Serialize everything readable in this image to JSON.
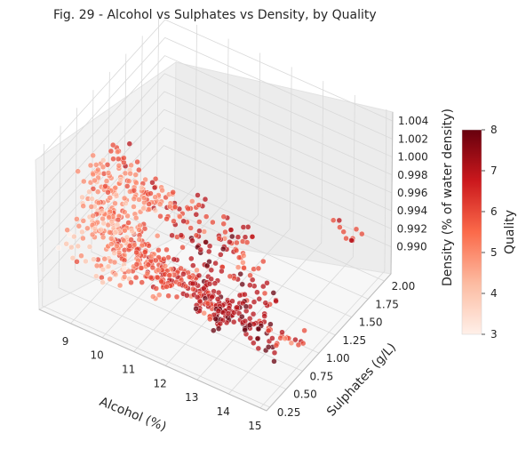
{
  "chart_data": {
    "type": "scatter",
    "projection": "3d",
    "title": "Fig. 29 - Alcohol vs Sulphates vs Density, by Quality",
    "xlabel": "Alcohol (%)",
    "ylabel": "Sulphates (g/L)",
    "zlabel": "Density (% of water density)",
    "x_ticks": [
      "9",
      "10",
      "11",
      "12",
      "13",
      "14",
      "15"
    ],
    "y_ticks": [
      "0.25",
      "0.50",
      "0.75",
      "1.00",
      "1.25",
      "1.50",
      "1.75",
      "2.00"
    ],
    "z_ticks": [
      "0.990",
      "0.992",
      "0.994",
      "0.996",
      "0.998",
      "1.000",
      "1.002",
      "1.004"
    ],
    "xlim": [
      8.0,
      15.2
    ],
    "ylim": [
      0.2,
      2.1
    ],
    "zlim": [
      0.987,
      1.005
    ],
    "grid": true,
    "colorbar": {
      "label": "Quality",
      "ticks": [
        "3",
        "4",
        "5",
        "6",
        "7",
        "8"
      ],
      "range": [
        3,
        8
      ],
      "colormap": "Reds",
      "colors": [
        "#fff0e9",
        "#fcbba1",
        "#fb6a4a",
        "#cb181d",
        "#67000d"
      ]
    },
    "points_note": "approximately 1500 wine samples; dense cluster at alcohol 9-11.5%, sulphates 0.3-0.8 g/L, density 0.993-0.998",
    "points": [
      [
        9.2,
        0.45,
        0.9965,
        5
      ],
      [
        9.4,
        0.52,
        0.9972,
        5
      ],
      [
        9.5,
        0.6,
        0.9968,
        5
      ],
      [
        9.6,
        0.48,
        0.9975,
        5
      ],
      [
        9.8,
        0.55,
        0.996,
        6
      ],
      [
        9.9,
        0.62,
        0.997,
        5
      ],
      [
        10.0,
        0.5,
        0.9955,
        6
      ],
      [
        10.1,
        0.58,
        0.9962,
        5
      ],
      [
        10.2,
        0.66,
        0.995,
        6
      ],
      [
        10.3,
        0.47,
        0.9958,
        5
      ],
      [
        9.3,
        0.38,
        0.998,
        5
      ],
      [
        9.5,
        0.42,
        0.9985,
        4
      ],
      [
        9.7,
        0.7,
        0.9978,
        5
      ],
      [
        10.4,
        0.52,
        0.9948,
        6
      ],
      [
        10.5,
        0.6,
        0.994,
        6
      ],
      [
        10.6,
        0.44,
        0.9952,
        6
      ],
      [
        10.8,
        0.56,
        0.9935,
        6
      ],
      [
        11.0,
        0.62,
        0.993,
        6
      ],
      [
        11.2,
        0.7,
        0.9925,
        7
      ],
      [
        11.4,
        0.58,
        0.992,
        6
      ],
      [
        11.6,
        0.66,
        0.9918,
        7
      ],
      [
        11.8,
        0.74,
        0.9915,
        7
      ],
      [
        12.0,
        0.8,
        0.991,
        7
      ],
      [
        12.2,
        0.62,
        0.9912,
        6
      ],
      [
        12.4,
        0.7,
        0.9905,
        7
      ],
      [
        12.6,
        0.78,
        0.99,
        7
      ],
      [
        12.8,
        0.72,
        0.9902,
        7
      ],
      [
        13.0,
        0.68,
        0.9898,
        8
      ],
      [
        13.2,
        0.76,
        0.9895,
        7
      ],
      [
        13.5,
        0.82,
        0.989,
        7
      ],
      [
        9.1,
        0.55,
        0.999,
        5
      ],
      [
        9.0,
        0.6,
        1.0,
        5
      ],
      [
        9.4,
        0.75,
        0.9995,
        5
      ],
      [
        9.8,
        0.9,
        0.9982,
        6
      ],
      [
        10.2,
        0.95,
        0.997,
        5
      ],
      [
        10.8,
        1.1,
        0.9955,
        6
      ],
      [
        11.4,
        1.2,
        0.994,
        6
      ],
      [
        12.0,
        1.3,
        0.9925,
        7
      ],
      [
        11.0,
        1.0,
        0.995,
        6
      ],
      [
        10.0,
        0.35,
        0.9965,
        5
      ],
      [
        10.4,
        0.4,
        0.9958,
        6
      ],
      [
        9.6,
        0.33,
        0.9972,
        5
      ],
      [
        10.9,
        0.48,
        0.9945,
        6
      ],
      [
        11.3,
        0.52,
        0.9935,
        6
      ],
      [
        11.7,
        0.55,
        0.9928,
        6
      ],
      [
        12.1,
        0.58,
        0.992,
        7
      ],
      [
        12.5,
        0.6,
        0.9915,
        6
      ],
      [
        12.9,
        0.64,
        0.9908,
        7
      ],
      [
        13.4,
        0.7,
        0.99,
        7
      ],
      [
        13.8,
        0.75,
        0.9895,
        8
      ],
      [
        14.0,
        0.8,
        0.9892,
        7
      ],
      [
        14.2,
        0.72,
        0.989,
        7
      ],
      [
        14.5,
        0.85,
        0.9888,
        6
      ],
      [
        9.2,
        0.65,
        0.9988,
        5
      ],
      [
        9.6,
        0.8,
        0.9978,
        5
      ],
      [
        10.1,
        0.85,
        0.9968,
        6
      ],
      [
        10.6,
        0.9,
        0.9958,
        6
      ],
      [
        11.1,
        0.88,
        0.9945,
        6
      ],
      [
        11.6,
        0.92,
        0.9935,
        7
      ],
      [
        12.2,
        0.96,
        0.9922,
        7
      ],
      [
        9.8,
        0.45,
        0.9962,
        4
      ],
      [
        10.3,
        0.38,
        0.9952,
        5
      ],
      [
        10.7,
        0.42,
        0.9945,
        5
      ],
      [
        11.1,
        0.4,
        0.9938,
        6
      ],
      [
        11.5,
        0.45,
        0.993,
        6
      ],
      [
        9.4,
        0.58,
        1.001,
        5
      ],
      [
        9.2,
        0.5,
        1.002,
        5
      ],
      [
        10.0,
        0.7,
        1.0002,
        5
      ],
      [
        9.7,
        0.62,
        1.003,
        6
      ],
      [
        10.5,
        0.75,
        0.999,
        5
      ],
      [
        12.8,
        1.1,
        0.99,
        7
      ],
      [
        13.2,
        1.05,
        0.9895,
        7
      ],
      [
        12.4,
        1.2,
        0.9905,
        6
      ],
      [
        11.8,
        1.3,
        0.9915,
        6
      ],
      [
        14.0,
        1.95,
        0.991,
        6
      ],
      [
        9.5,
        0.35,
        0.993,
        5
      ],
      [
        9.9,
        0.4,
        0.9925,
        5
      ],
      [
        10.2,
        0.3,
        0.9935,
        4
      ],
      [
        9.0,
        0.3,
        0.9948,
        4
      ],
      [
        9.3,
        0.8,
        0.9955,
        3
      ],
      [
        10.7,
        0.72,
        0.992,
        6
      ],
      [
        11.3,
        0.76,
        0.9912,
        6
      ],
      [
        11.9,
        0.8,
        0.9905,
        7
      ],
      [
        12.6,
        0.86,
        0.9898,
        7
      ],
      [
        13.1,
        0.9,
        0.9892,
        7
      ]
    ]
  }
}
